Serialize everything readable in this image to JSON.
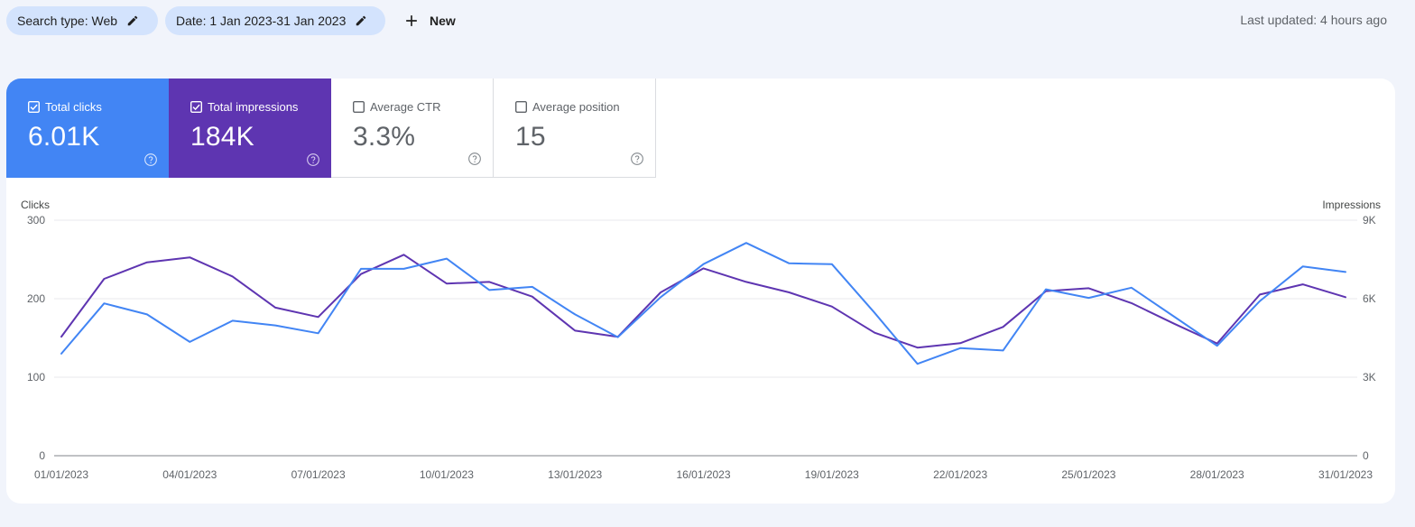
{
  "filters": {
    "search_type": "Search type: Web",
    "date": "Date: 1 Jan 2023-31 Jan 2023",
    "new_label": "New"
  },
  "last_updated": "Last updated: 4 hours ago",
  "metrics": [
    {
      "label": "Total clicks",
      "value": "6.01K",
      "checked": true,
      "color": "#4285f4"
    },
    {
      "label": "Total impressions",
      "value": "184K",
      "checked": true,
      "color": "#5e35b1"
    },
    {
      "label": "Average CTR",
      "value": "3.3%",
      "checked": false
    },
    {
      "label": "Average position",
      "value": "15",
      "checked": false
    }
  ],
  "chart_data": {
    "type": "line",
    "x": [
      "01/01/2023",
      "02/01/2023",
      "03/01/2023",
      "04/01/2023",
      "05/01/2023",
      "06/01/2023",
      "07/01/2023",
      "08/01/2023",
      "09/01/2023",
      "10/01/2023",
      "11/01/2023",
      "12/01/2023",
      "13/01/2023",
      "14/01/2023",
      "15/01/2023",
      "16/01/2023",
      "17/01/2023",
      "18/01/2023",
      "19/01/2023",
      "20/01/2023",
      "21/01/2023",
      "22/01/2023",
      "23/01/2023",
      "24/01/2023",
      "25/01/2023",
      "26/01/2023",
      "27/01/2023",
      "28/01/2023",
      "29/01/2023",
      "30/01/2023",
      "31/01/2023"
    ],
    "x_tick_labels": [
      "01/01/2023",
      "04/01/2023",
      "07/01/2023",
      "10/01/2023",
      "13/01/2023",
      "16/01/2023",
      "19/01/2023",
      "22/01/2023",
      "25/01/2023",
      "28/01/2023",
      "31/01/2023"
    ],
    "left_axis": {
      "label": "Clicks",
      "ticks": [
        "0",
        "100",
        "200",
        "300"
      ],
      "range": [
        0,
        300
      ]
    },
    "right_axis": {
      "label": "Impressions",
      "ticks": [
        "0",
        "3K",
        "6K",
        "9K"
      ],
      "range": [
        0,
        9000
      ]
    },
    "grid": true,
    "series": [
      {
        "axis": "left",
        "color": "#4285f4",
        "values": [
          130,
          194,
          180,
          145,
          172,
          166,
          156,
          238,
          238,
          251,
          211,
          215,
          180,
          151,
          202,
          244,
          271,
          245,
          244,
          182,
          117,
          137,
          134,
          212,
          201,
          214,
          177,
          140,
          197,
          241,
          234
        ]
      },
      {
        "axis": "right",
        "color": "#5e35b1",
        "values": [
          4550,
          6760,
          7390,
          7580,
          6850,
          5660,
          5300,
          6940,
          7680,
          6580,
          6640,
          6080,
          4780,
          4540,
          6240,
          7160,
          6640,
          6240,
          5700,
          4700,
          4130,
          4300,
          4920,
          6290,
          6400,
          5830,
          5040,
          4290,
          6160,
          6550,
          6060
        ]
      }
    ]
  }
}
